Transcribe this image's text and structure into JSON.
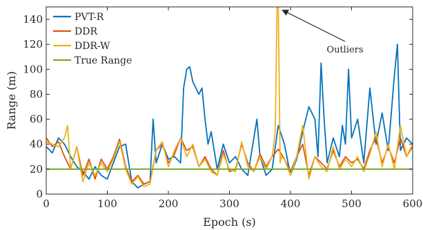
{
  "chart_data": {
    "type": "line",
    "title": "",
    "xlabel": "Epoch (s)",
    "ylabel": "Range (m)",
    "xlim": [
      0,
      600
    ],
    "ylim": [
      0,
      150
    ],
    "xticks": [
      0,
      100,
      200,
      300,
      400,
      500,
      600
    ],
    "yticks": [
      0,
      20,
      40,
      60,
      80,
      100,
      120,
      140
    ],
    "grid": false,
    "legend_position": "top-left",
    "annotation": {
      "text": "Outliers",
      "x": 380,
      "y": 148
    },
    "series": [
      {
        "name": "PVT-R",
        "color": "#0072BD",
        "x": [
          0,
          10,
          20,
          30,
          40,
          50,
          60,
          70,
          80,
          90,
          100,
          110,
          120,
          130,
          140,
          150,
          160,
          170,
          175,
          180,
          190,
          200,
          210,
          220,
          225,
          230,
          235,
          240,
          250,
          255,
          260,
          265,
          270,
          280,
          290,
          300,
          310,
          320,
          330,
          340,
          345,
          350,
          360,
          370,
          380,
          390,
          400,
          410,
          420,
          430,
          440,
          445,
          450,
          455,
          460,
          470,
          480,
          485,
          490,
          495,
          500,
          510,
          520,
          530,
          540,
          550,
          560,
          570,
          575,
          580,
          590,
          600
        ],
        "values": [
          38,
          33,
          45,
          40,
          30,
          22,
          18,
          12,
          22,
          15,
          12,
          25,
          38,
          40,
          10,
          5,
          8,
          10,
          60,
          25,
          40,
          28,
          30,
          25,
          85,
          100,
          102,
          90,
          80,
          85,
          60,
          40,
          50,
          20,
          40,
          25,
          30,
          20,
          15,
          45,
          60,
          30,
          15,
          20,
          55,
          40,
          15,
          28,
          50,
          70,
          60,
          30,
          105,
          60,
          25,
          45,
          30,
          55,
          40,
          100,
          45,
          60,
          25,
          85,
          40,
          65,
          35,
          95,
          120,
          35,
          45,
          40
        ]
      },
      {
        "name": "DDR",
        "color": "#D95319",
        "x": [
          0,
          10,
          20,
          30,
          40,
          50,
          60,
          70,
          80,
          90,
          100,
          110,
          120,
          130,
          140,
          150,
          160,
          170,
          180,
          190,
          200,
          210,
          220,
          230,
          240,
          250,
          260,
          270,
          280,
          290,
          300,
          310,
          320,
          330,
          340,
          350,
          360,
          370,
          380,
          390,
          400,
          410,
          420,
          430,
          440,
          450,
          460,
          470,
          480,
          490,
          500,
          510,
          520,
          530,
          540,
          550,
          560,
          570,
          580,
          590,
          600
        ],
        "values": [
          45,
          38,
          42,
          30,
          20,
          38,
          15,
          28,
          12,
          28,
          20,
          30,
          44,
          22,
          10,
          15,
          8,
          10,
          35,
          40,
          25,
          32,
          45,
          35,
          38,
          22,
          30,
          20,
          15,
          35,
          18,
          20,
          40,
          25,
          18,
          32,
          22,
          30,
          36,
          28,
          18,
          30,
          40,
          15,
          30,
          25,
          20,
          35,
          22,
          30,
          25,
          28,
          20,
          35,
          45,
          25,
          38,
          25,
          45,
          30,
          38
        ]
      },
      {
        "name": "DDR-W",
        "color": "#EDB120",
        "x": [
          0,
          10,
          20,
          30,
          35,
          40,
          50,
          60,
          70,
          80,
          90,
          100,
          110,
          120,
          130,
          140,
          150,
          160,
          170,
          180,
          190,
          200,
          210,
          220,
          230,
          240,
          250,
          260,
          270,
          280,
          290,
          300,
          310,
          320,
          330,
          340,
          350,
          360,
          370,
          375,
          378,
          380,
          383,
          385,
          390,
          400,
          410,
          420,
          430,
          440,
          450,
          460,
          470,
          480,
          490,
          500,
          510,
          520,
          530,
          540,
          550,
          560,
          570,
          580,
          590,
          600
        ],
        "values": [
          42,
          40,
          38,
          45,
          55,
          20,
          38,
          10,
          25,
          15,
          25,
          18,
          28,
          42,
          20,
          8,
          14,
          6,
          8,
          35,
          42,
          22,
          35,
          45,
          30,
          40,
          22,
          28,
          18,
          15,
          32,
          20,
          18,
          42,
          22,
          18,
          30,
          20,
          30,
          50,
          150,
          150,
          25,
          30,
          28,
          15,
          30,
          55,
          12,
          30,
          22,
          18,
          38,
          20,
          28,
          22,
          30,
          18,
          32,
          50,
          22,
          40,
          20,
          55,
          30,
          40
        ]
      },
      {
        "name": "True Range",
        "color": "#77AC30",
        "x": [
          0,
          600
        ],
        "values": [
          20,
          20
        ]
      }
    ]
  }
}
